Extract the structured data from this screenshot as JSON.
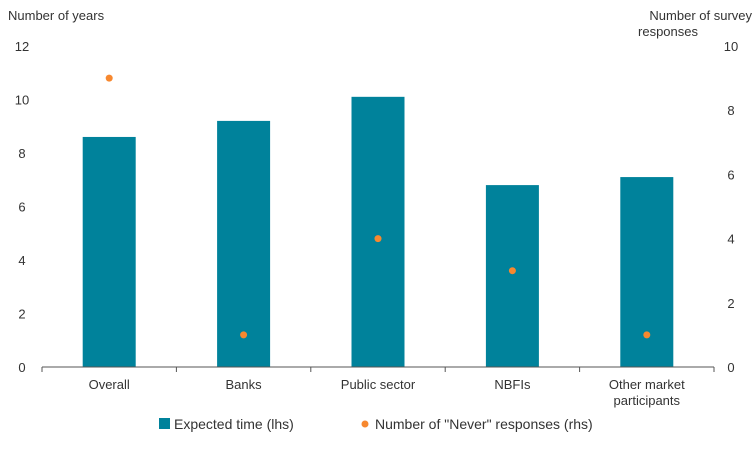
{
  "chart_data": {
    "type": "bar",
    "categories": [
      "Overall",
      "Banks",
      "Public sector",
      "NBFIs",
      "Other market participants"
    ],
    "category_labels": [
      [
        "Overall"
      ],
      [
        "Banks"
      ],
      [
        "Public sector"
      ],
      [
        "NBFIs"
      ],
      [
        "Other market",
        "participants"
      ]
    ],
    "series": [
      {
        "name": "Expected time (lhs)",
        "kind": "bar",
        "axis": "left",
        "color": "#00829B",
        "values": [
          8.6,
          9.2,
          10.1,
          6.8,
          7.1
        ]
      },
      {
        "name": "Number of \"Never\" responses (rhs)",
        "kind": "scatter",
        "axis": "right",
        "color": "#F7882F",
        "values": [
          9,
          1,
          4,
          3,
          1
        ]
      }
    ],
    "left_axis": {
      "title": "Number of years",
      "min": 0,
      "max": 12,
      "ticks": [
        0,
        2,
        4,
        6,
        8,
        10,
        12
      ]
    },
    "right_axis": {
      "title_lines": [
        "Number of survey",
        "responses"
      ],
      "min": 0,
      "max": 10,
      "ticks": [
        0,
        2,
        4,
        6,
        8,
        10
      ]
    },
    "grid": false,
    "legend_position": "bottom"
  }
}
